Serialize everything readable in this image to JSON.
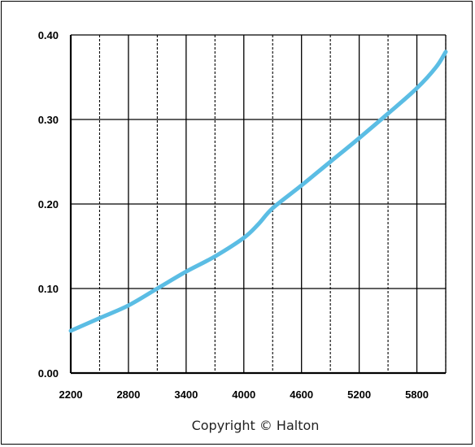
{
  "chart_data": {
    "type": "line",
    "title": "",
    "xlabel": "",
    "ylabel": "",
    "xlim": [
      2200,
      6100
    ],
    "ylim": [
      0.0,
      0.4
    ],
    "x_ticks": [
      "2200",
      "2800",
      "3400",
      "4000",
      "4600",
      "5200",
      "5800"
    ],
    "y_ticks": [
      "0.00",
      "0.10",
      "0.20",
      "0.30",
      "0.40"
    ],
    "grid": true,
    "series": [
      {
        "color": "#5bbde4",
        "x": [
          2200,
          2500,
          2800,
          3100,
          3400,
          3700,
          4000,
          4150,
          4300,
          4600,
          4900,
          5200,
          5500,
          5800,
          6000,
          6100
        ],
        "y": [
          0.05,
          0.065,
          0.08,
          0.1,
          0.12,
          0.138,
          0.16,
          0.176,
          0.195,
          0.222,
          0.25,
          0.278,
          0.307,
          0.337,
          0.362,
          0.38
        ]
      }
    ]
  },
  "copyright": "Copyright © Halton",
  "colors": {
    "line": "#5bbde4",
    "grid": "#000000",
    "background": "#ffffff"
  }
}
